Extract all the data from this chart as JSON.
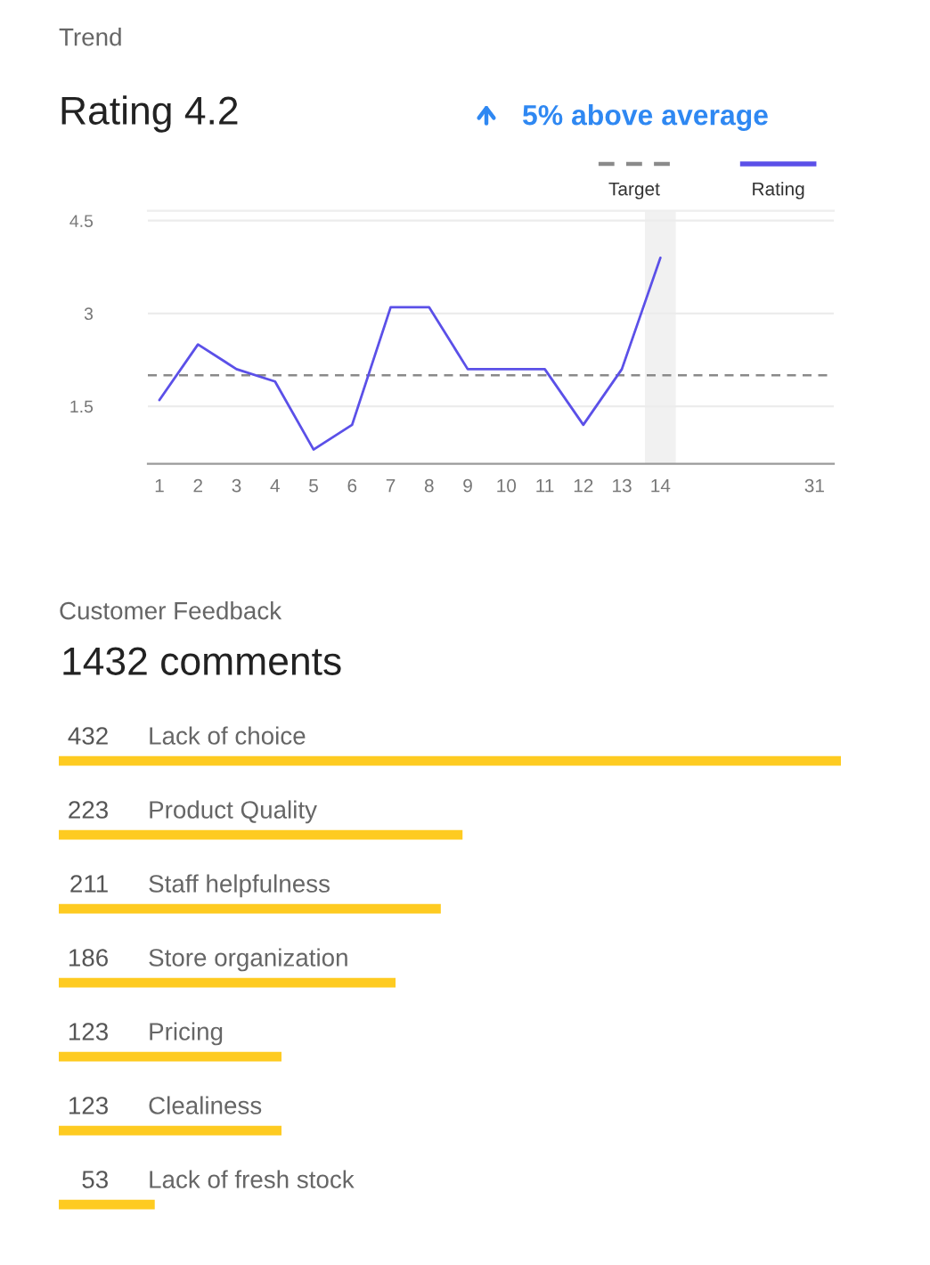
{
  "chart_data": [
    {
      "type": "line",
      "title": "Trend",
      "subtitle": "Rating 4.2",
      "annotations": [
        "5% above average"
      ],
      "categories": [
        "1",
        "2",
        "3",
        "4",
        "5",
        "6",
        "7",
        "8",
        "9",
        "10",
        "11",
        "12",
        "13",
        "14",
        null,
        null,
        null,
        "31"
      ],
      "series": [
        {
          "name": "Rating",
          "color": "#5b50e8",
          "values": [
            1.6,
            2.5,
            2.1,
            1.9,
            0.8,
            1.2,
            3.1,
            3.1,
            2.1,
            2.1,
            2.1,
            1.2,
            2.1,
            3.9,
            null,
            null,
            null,
            null
          ]
        }
      ],
      "ylim": [
        0.57,
        4.66
      ],
      "yticks": [
        1.5,
        3,
        4.5
      ],
      "grid": "y",
      "legend": "top right",
      "ref_lines": [
        {
          "axis": "y",
          "value": 2,
          "label": "Target",
          "color": "#8a8a8a",
          "line_style": "dashed"
        }
      ],
      "bands": [
        {
          "axis": "x",
          "from": "14",
          "to": "14",
          "color": "#f1f1f1"
        }
      ]
    },
    {
      "type": "bar",
      "orientation": "horizontal",
      "title": "Customer Feedback",
      "subtitle": "1432 comments",
      "categories": [
        "Lack of choice",
        "Product Quality",
        "Staff helpfulness",
        "Store organization",
        "Pricing",
        "Clealiness",
        "Lack of fresh stock"
      ],
      "values": [
        432,
        223,
        211,
        186,
        123,
        123,
        53
      ],
      "color": "#fecb21",
      "data_labels": true
    }
  ]
}
